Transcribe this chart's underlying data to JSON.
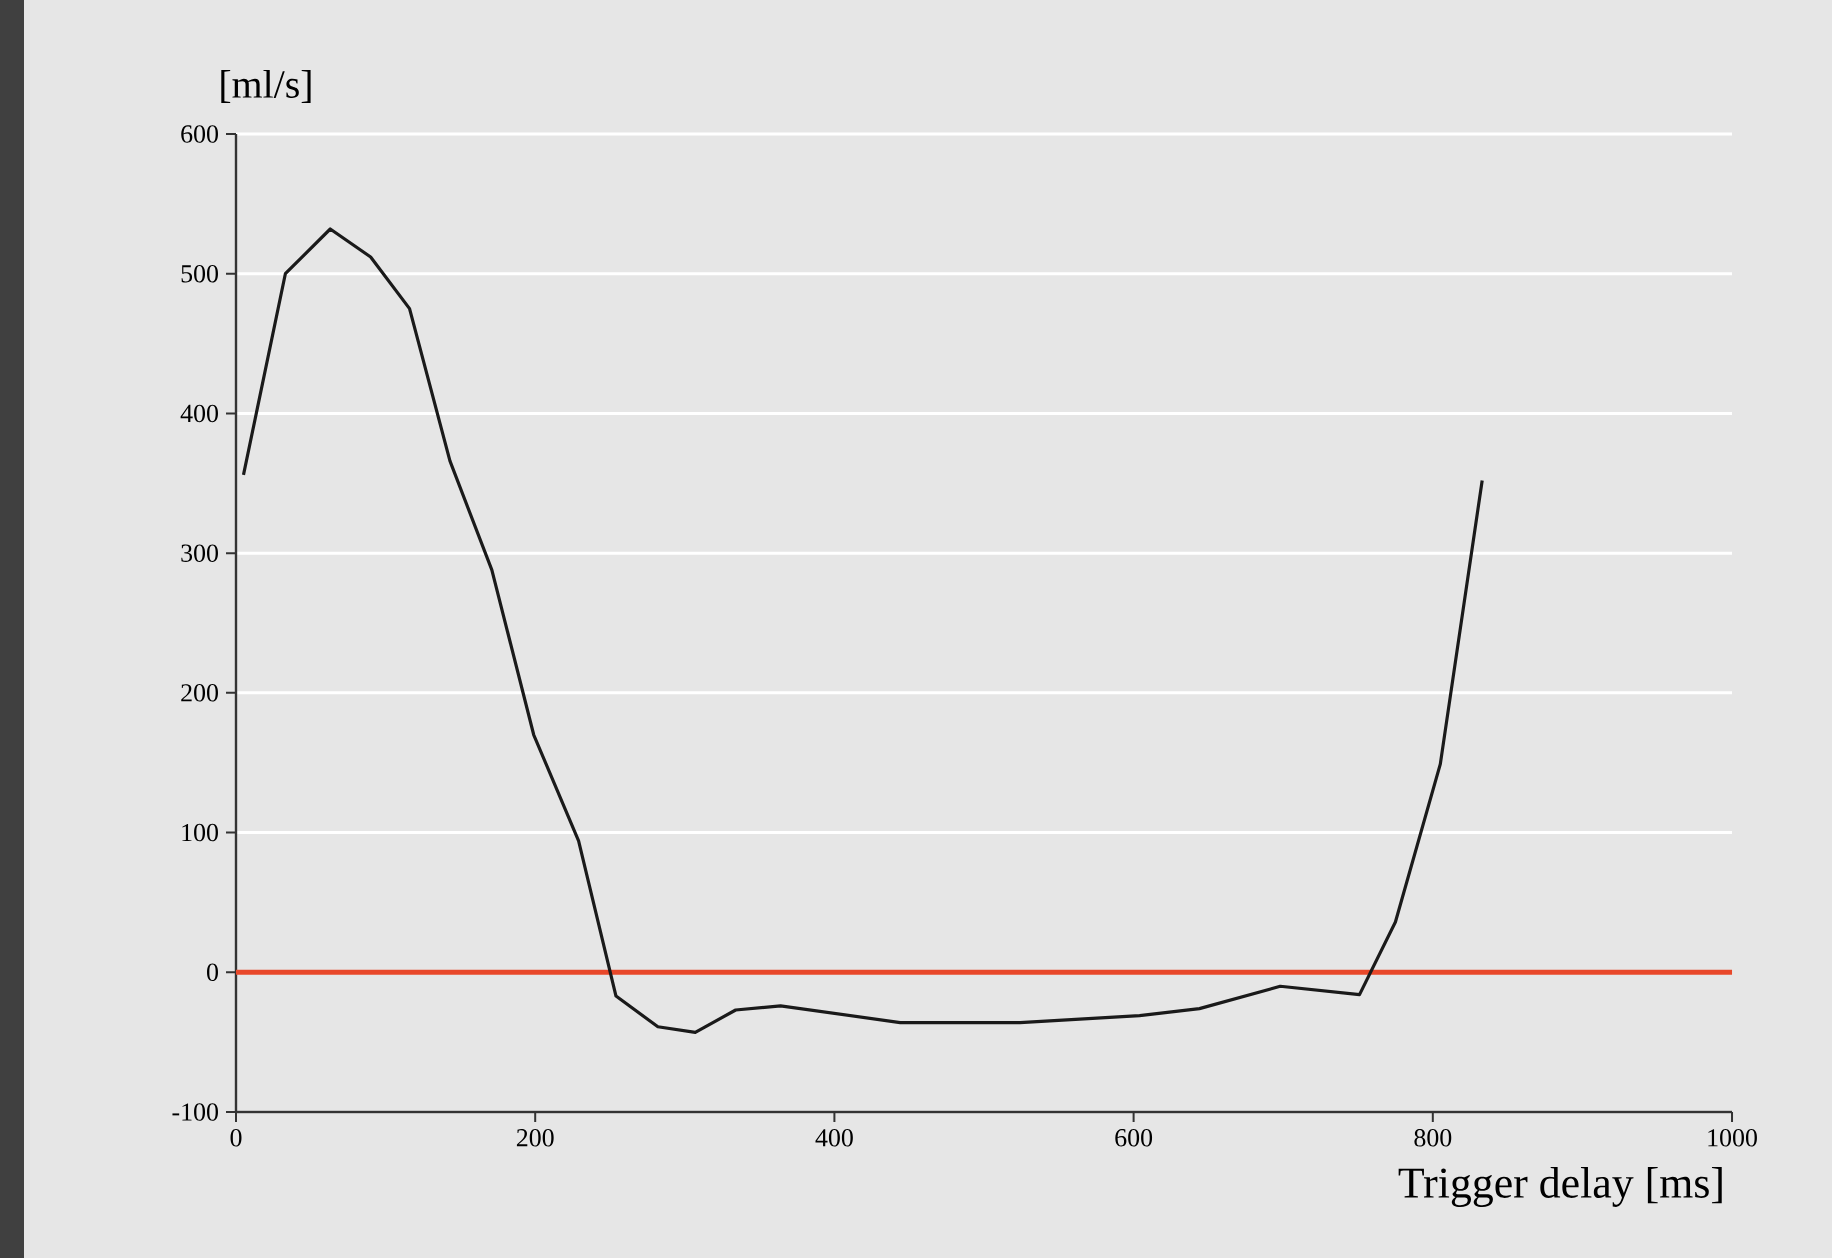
{
  "chart_data": {
    "type": "line",
    "xlabel": "Trigger delay [ms]",
    "ylabel": "[ml/s]",
    "xlim": [
      0,
      1000
    ],
    "ylim": [
      -100,
      600
    ],
    "xticks": [
      0,
      200,
      400,
      600,
      800,
      1000
    ],
    "yticks": [
      -100,
      0,
      100,
      200,
      300,
      400,
      500,
      600
    ],
    "grid": "y",
    "marker": "none",
    "line_style": "solid",
    "series": [
      {
        "color": "#1a1a1a",
        "x": [
          5,
          33,
          63,
          90,
          116,
          143,
          171,
          199,
          229,
          254,
          282,
          307,
          334,
          364,
          444,
          524,
          604,
          644,
          698,
          751,
          775,
          805,
          833
        ],
        "values": [
          356,
          500,
          532,
          512,
          475,
          366,
          288,
          170,
          94,
          -17,
          -39,
          -43,
          -27,
          -24,
          -36,
          -36,
          -31,
          -26,
          -10,
          -16,
          36,
          149,
          352
        ]
      }
    ],
    "ref_lines": [
      {
        "axis": "y",
        "value": 0,
        "color": "#e8482a"
      }
    ]
  }
}
